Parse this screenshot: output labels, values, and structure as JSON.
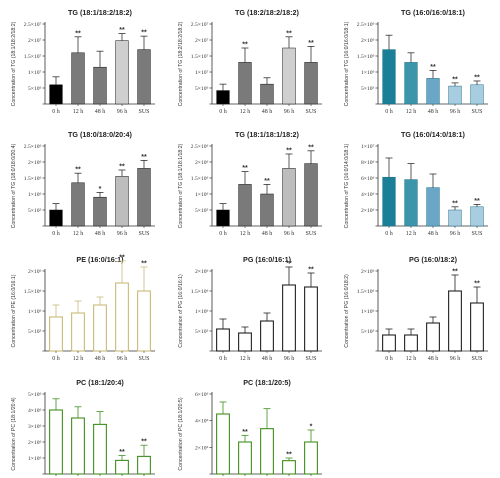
{
  "categories": [
    "0 h",
    "12 h",
    "48 h",
    "96 h",
    "SUS"
  ],
  "chart_data": [
    {
      "type": "bar",
      "title": "TG (18:1/18:2/18:2)",
      "ylabel": "Concentration of TG (18:1/18:2/18:2)",
      "ylim": [
        0,
        25000000
      ],
      "ytick_labels": [
        "",
        "5×10⁶",
        "1×10⁷",
        "1.5×10⁷",
        "2×10⁷",
        "2.5×10⁷"
      ],
      "values": [
        6000000,
        16000000,
        11500000,
        19800000,
        17000000
      ],
      "errors": [
        2500000,
        5000000,
        5000000,
        2200000,
        4200000
      ],
      "sig": [
        "",
        "**",
        "",
        "**",
        "**"
      ],
      "colors": [
        "#000000",
        "#7a7a7a",
        "#7a7a7a",
        "#cfcfcf",
        "#7a7a7a"
      ],
      "style": "solid",
      "edge": "#111111"
    },
    {
      "type": "bar",
      "title": "TG (18:2/18:2/18:2)",
      "ylabel": "Concentration of TG (18:2/18:2/18:2)",
      "ylim": [
        0,
        25000000
      ],
      "ytick_labels": [
        "",
        "5×10⁶",
        "1×10⁷",
        "1.5×10⁷",
        "2×10⁷",
        "2.5×10⁷"
      ],
      "values": [
        4200000,
        13000000,
        6200000,
        17500000,
        13000000
      ],
      "errors": [
        2000000,
        4500000,
        2000000,
        3500000,
        5000000
      ],
      "sig": [
        "",
        "**",
        "",
        "**",
        "**"
      ],
      "colors": [
        "#000000",
        "#7a7a7a",
        "#7a7a7a",
        "#cfcfcf",
        "#7a7a7a"
      ],
      "style": "solid",
      "edge": "#111111"
    },
    {
      "type": "bar",
      "title": "TG (16:0/16:0/18:1)",
      "ylabel": "Concentration of TG (16:0/16:0/18:1)",
      "ylim": [
        0,
        2500000
      ],
      "ytick_labels": [
        "",
        "5×10⁵",
        "1×10⁶",
        "1.5×10⁶",
        "2×10⁶",
        "2.5×10⁶"
      ],
      "values": [
        1700000,
        1300000,
        800000,
        560000,
        600000
      ],
      "errors": [
        450000,
        300000,
        250000,
        100000,
        120000
      ],
      "sig": [
        "",
        "",
        "**",
        "**",
        "**"
      ],
      "colors": [
        "#1b7f98",
        "#3d95ab",
        "#6aa7c7",
        "#a9cde0",
        "#a9cde0"
      ],
      "style": "solid",
      "edge": "#1b6f85"
    },
    {
      "type": "bar",
      "title": "TG (18:0/18:0/20:4)",
      "ylabel": "Concentration of TG (18:0/18:0/20:4)",
      "ylim": [
        0,
        2500000
      ],
      "ytick_labels": [
        "",
        "5×10⁵",
        "1×10⁶",
        "1.5×10⁶",
        "2×10⁶",
        "2.5×10⁶"
      ],
      "values": [
        500000,
        1350000,
        900000,
        1550000,
        1800000
      ],
      "errors": [
        200000,
        300000,
        150000,
        200000,
        250000
      ],
      "sig": [
        "",
        "**",
        "*",
        "**",
        "**"
      ],
      "colors": [
        "#000000",
        "#7a7a7a",
        "#7a7a7a",
        "#bdbdbd",
        "#7a7a7a"
      ],
      "style": "solid",
      "edge": "#111111"
    },
    {
      "type": "bar",
      "title": "TG (18:1/18:1/18:2)",
      "ylabel": "Concentration of TG (18:1/18:1/18:2)",
      "ylim": [
        0,
        2500000
      ],
      "ytick_labels": [
        "",
        "5×10⁵",
        "1×10⁶",
        "1.5×10⁶",
        "2×10⁶",
        "2.5×10⁶"
      ],
      "values": [
        500000,
        1300000,
        1000000,
        1800000,
        1950000
      ],
      "errors": [
        200000,
        400000,
        300000,
        450000,
        400000
      ],
      "sig": [
        "",
        "**",
        "**",
        "**",
        "**"
      ],
      "colors": [
        "#000000",
        "#7a7a7a",
        "#7a7a7a",
        "#bdbdbd",
        "#7a7a7a"
      ],
      "style": "solid",
      "edge": "#111111"
    },
    {
      "type": "bar",
      "title": "TG (16:0/14:0/18:1)",
      "ylabel": "Concentration of TG (16:0/14:0/18:1)",
      "ylim": [
        0,
        10000000
      ],
      "ytick_labels": [
        "",
        "2×10⁶",
        "4×10⁶",
        "6×10⁶",
        "8×10⁶",
        "1×10⁷"
      ],
      "values": [
        6100000,
        5800000,
        4800000,
        2000000,
        2400000
      ],
      "errors": [
        2400000,
        2000000,
        1700000,
        400000,
        300000
      ],
      "sig": [
        "",
        "",
        "",
        "**",
        "**"
      ],
      "colors": [
        "#1b7f98",
        "#3d95ab",
        "#6aa7c7",
        "#a9cde0",
        "#a9cde0"
      ],
      "style": "solid",
      "edge": "#1b6f85"
    },
    {
      "type": "bar",
      "title": "PE (16:0/16:1)",
      "ylabel": "Concentration of PE (16:0/16:1)",
      "ylim": [
        0,
        2000000
      ],
      "ytick_labels": [
        "",
        "5×10⁵",
        "1×10⁶",
        "1.5×10⁶",
        "2×10⁶"
      ],
      "values": [
        850000,
        950000,
        1150000,
        1700000,
        1500000
      ],
      "errors": [
        300000,
        300000,
        200000,
        550000,
        600000
      ],
      "sig": [
        "",
        "",
        "",
        "**",
        "**"
      ],
      "colors": [
        "#ffffff",
        "#ffffff",
        "#ffffff",
        "#ffffff",
        "#ffffff"
      ],
      "style": "outline",
      "edge": "#c8bb78"
    },
    {
      "type": "bar",
      "title": "PG (16:0/16:1)",
      "ylabel": "Concentration of PG (16:0/16:1)",
      "ylim": [
        0,
        2000000
      ],
      "ytick_labels": [
        "",
        "5×10⁵",
        "1×10⁶",
        "1.5×10⁶",
        "2×10⁶"
      ],
      "values": [
        550000,
        450000,
        750000,
        1650000,
        1600000
      ],
      "errors": [
        250000,
        150000,
        200000,
        450000,
        350000
      ],
      "sig": [
        "",
        "",
        "",
        "**",
        "**"
      ],
      "colors": [
        "#ffffff",
        "#ffffff",
        "#ffffff",
        "#ffffff",
        "#ffffff"
      ],
      "style": "outline",
      "edge": "#222222"
    },
    {
      "type": "bar",
      "title": "PG (16:0/18:2)",
      "ylabel": "Concentration of PG (16:0/18:2)",
      "ylim": [
        0,
        2000000
      ],
      "ytick_labels": [
        "",
        "5×10⁵",
        "1×10⁶",
        "1.5×10⁶",
        "2×10⁶"
      ],
      "values": [
        400000,
        400000,
        700000,
        1500000,
        1200000
      ],
      "errors": [
        150000,
        150000,
        150000,
        400000,
        400000
      ],
      "sig": [
        "",
        "",
        "",
        "**",
        "**"
      ],
      "colors": [
        "#ffffff",
        "#ffffff",
        "#ffffff",
        "#ffffff",
        "#ffffff"
      ],
      "style": "outline",
      "edge": "#222222"
    },
    {
      "type": "bar",
      "title": "PC (18:1/20:4)",
      "ylabel": "Concentration of PC (18:1/20:4)",
      "ylim": [
        0,
        5000000
      ],
      "ytick_labels": [
        "",
        "1×10⁶",
        "2×10⁶",
        "3×10⁶",
        "4×10⁶",
        "5×10⁶"
      ],
      "values": [
        4000000,
        3500000,
        3100000,
        850000,
        1100000
      ],
      "errors": [
        700000,
        700000,
        800000,
        300000,
        700000
      ],
      "sig": [
        "",
        "",
        "",
        "**",
        "**"
      ],
      "colors": [
        "#ffffff",
        "#ffffff",
        "#ffffff",
        "#ffffff",
        "#ffffff"
      ],
      "style": "outline",
      "edge": "#3f8f1f"
    },
    {
      "type": "bar",
      "title": "PC (18:1/20:5)",
      "ylabel": "Concentration of PC (18:1/20:5)",
      "ylim": [
        0,
        6000000
      ],
      "ytick_labels": [
        "",
        "2×10⁶",
        "4×10⁶",
        "6×10⁶"
      ],
      "values": [
        4500000,
        2400000,
        3400000,
        1000000,
        2400000
      ],
      "errors": [
        900000,
        500000,
        1500000,
        200000,
        900000
      ],
      "sig": [
        "",
        "**",
        "",
        "**",
        "*"
      ],
      "colors": [
        "#ffffff",
        "#ffffff",
        "#ffffff",
        "#ffffff",
        "#ffffff"
      ],
      "style": "outline",
      "edge": "#3f8f1f"
    }
  ]
}
